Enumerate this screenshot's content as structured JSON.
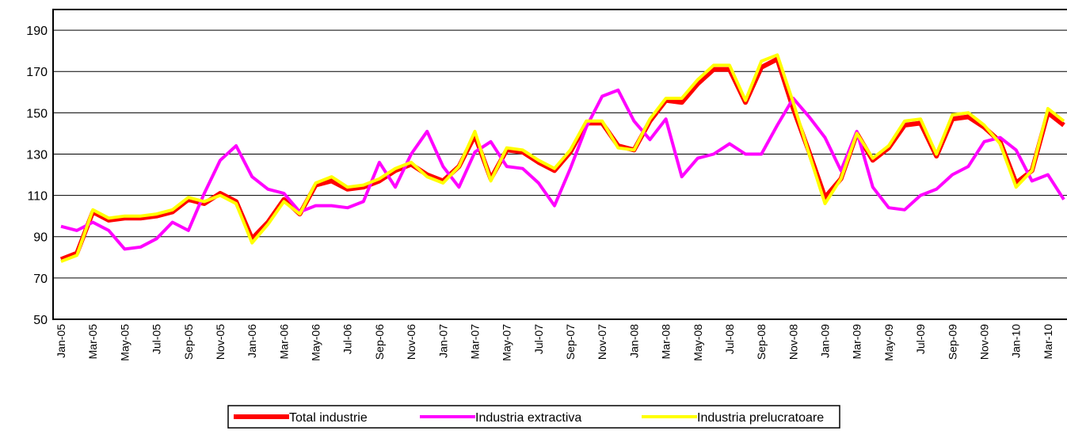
{
  "chart_data": {
    "type": "line",
    "categories": [
      "Jan-05",
      null,
      "Mar-05",
      null,
      "May-05",
      null,
      "Jul-05",
      null,
      "Sep-05",
      null,
      "Nov-05",
      null,
      "Jan-06",
      null,
      "Mar-06",
      null,
      "May-06",
      null,
      "Jul-06",
      null,
      "Sep-06",
      null,
      "Nov-06",
      null,
      "Jan-07",
      null,
      "Mar-07",
      null,
      "May-07",
      null,
      "Jul-07",
      null,
      "Sep-07",
      null,
      "Nov-07",
      null,
      "Jan-08",
      null,
      "Mar-08",
      null,
      "May-08",
      null,
      "Jul-08",
      null,
      "Sep-08",
      null,
      "Nov-08",
      null,
      "Jan-09",
      null,
      "Mar-09",
      null,
      "May-09",
      null,
      "Jul-09",
      null,
      "Sep-09",
      null,
      "Nov-09",
      null,
      "Jan-10",
      null,
      "Mar-10",
      null
    ],
    "series": [
      {
        "name": "Total industrie",
        "color": "#ff0000",
        "values": [
          79,
          82,
          102,
          98,
          99,
          99,
          100,
          102,
          108,
          106,
          111,
          107,
          89,
          97,
          108,
          101,
          115,
          117,
          113,
          114,
          117,
          122,
          125,
          120,
          117,
          124,
          139,
          118,
          132,
          131,
          126,
          122,
          131,
          145,
          145,
          134,
          132,
          146,
          156,
          155,
          164,
          171,
          171,
          155,
          172,
          176,
          152,
          131,
          109,
          118,
          140,
          127,
          133,
          144,
          145,
          129,
          147,
          148,
          143,
          136,
          116,
          122,
          150,
          144
        ]
      },
      {
        "name": "Industria extractiva",
        "color": "#ff00ff",
        "values": [
          95,
          93,
          97,
          93,
          84,
          85,
          89,
          97,
          93,
          111,
          127,
          134,
          119,
          113,
          111,
          102,
          105,
          105,
          104,
          107,
          126,
          114,
          130,
          141,
          124,
          114,
          131,
          136,
          124,
          123,
          116,
          105,
          123,
          143,
          158,
          161,
          146,
          137,
          147,
          119,
          128,
          130,
          135,
          130,
          130,
          144,
          157,
          148,
          138,
          122,
          141,
          114,
          104,
          103,
          110,
          113,
          120,
          124,
          136,
          138,
          132,
          117,
          120,
          108
        ]
      },
      {
        "name": "Industria prelucratoare",
        "color": "#ffff00",
        "values": [
          78,
          81,
          103,
          99,
          100,
          100,
          101,
          103,
          109,
          107,
          110,
          106,
          87,
          96,
          107,
          101,
          116,
          119,
          114,
          115,
          118,
          123,
          126,
          119,
          116,
          124,
          141,
          117,
          133,
          132,
          127,
          123,
          132,
          146,
          146,
          133,
          132,
          147,
          157,
          157,
          166,
          173,
          173,
          156,
          175,
          178,
          155,
          130,
          106,
          118,
          140,
          128,
          134,
          146,
          147,
          130,
          149,
          150,
          144,
          135,
          114,
          122,
          152,
          146
        ]
      }
    ],
    "ylim": [
      50,
      200
    ],
    "yticks": [
      50,
      70,
      90,
      110,
      130,
      150,
      170,
      190
    ],
    "grid": true
  }
}
